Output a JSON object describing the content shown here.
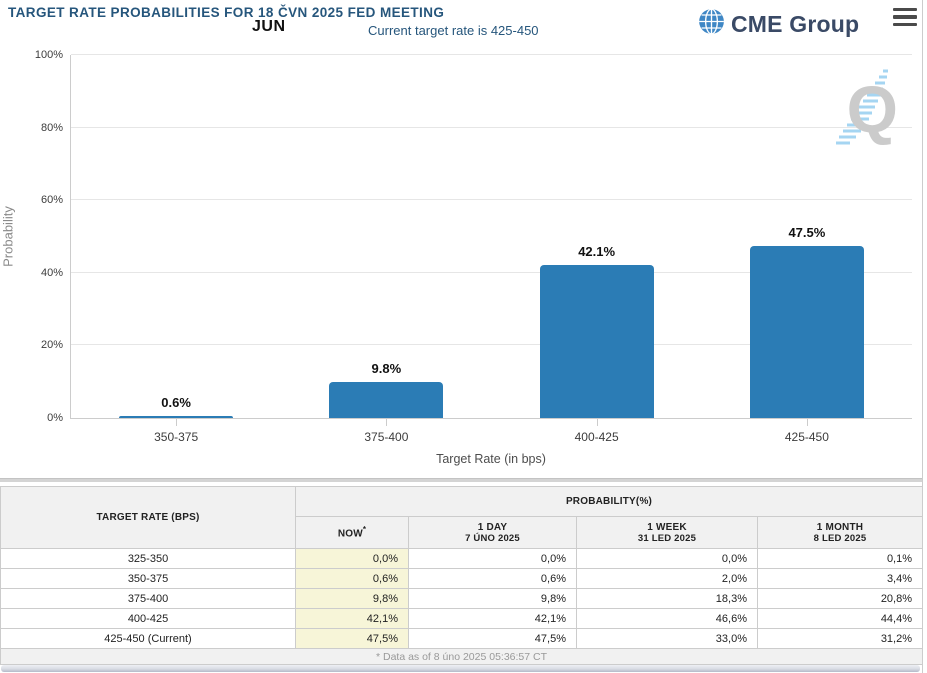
{
  "header": {
    "title": "TARGET RATE PROBABILITIES FOR 18 ČVN 2025 FED MEETING",
    "month_label": "JUN",
    "subtitle": "Current target rate is 425-450",
    "brand": "CME Group",
    "brand_color": "#3a4a66",
    "globe_color": "#3f87c5"
  },
  "chart_data": {
    "type": "bar",
    "title": "",
    "categories": [
      "350-375",
      "375-400",
      "400-425",
      "425-450"
    ],
    "values": [
      0.6,
      9.8,
      42.1,
      47.5
    ],
    "value_labels": [
      "0.6%",
      "9.8%",
      "42.1%",
      "47.5%"
    ],
    "xlabel": "Target Rate (in bps)",
    "ylabel": "Probability",
    "ylim": [
      0,
      100
    ],
    "ytick_labels": [
      "0%",
      "20%",
      "40%",
      "60%",
      "80%",
      "100%"
    ],
    "grid": true,
    "legend": false,
    "bar_color": "#2b7cb5",
    "watermark_letter": "Q"
  },
  "table": {
    "rate_header": "TARGET RATE (BPS)",
    "group_header": "PROBABILITY(%)",
    "now_label": "NOW",
    "now_mark": "*",
    "time_columns": [
      {
        "label": "1 DAY",
        "date": "7 ÚNO 2025"
      },
      {
        "label": "1 WEEK",
        "date": "31 LED 2025"
      },
      {
        "label": "1 MONTH",
        "date": "8 LED 2025"
      }
    ],
    "rows": [
      {
        "range": "325-350",
        "now": "0,0%",
        "day": "0,0%",
        "week": "0,0%",
        "month": "0,1%"
      },
      {
        "range": "350-375",
        "now": "0,6%",
        "day": "0,6%",
        "week": "2,0%",
        "month": "3,4%"
      },
      {
        "range": "375-400",
        "now": "9,8%",
        "day": "9,8%",
        "week": "18,3%",
        "month": "20,8%"
      },
      {
        "range": "400-425",
        "now": "42,1%",
        "day": "42,1%",
        "week": "46,6%",
        "month": "44,4%"
      },
      {
        "range": "425-450 (Current)",
        "now": "47,5%",
        "day": "47,5%",
        "week": "33,0%",
        "month": "31,2%"
      }
    ],
    "footnote": "* Data as of 8 úno 2025 05:36:57 CT"
  }
}
